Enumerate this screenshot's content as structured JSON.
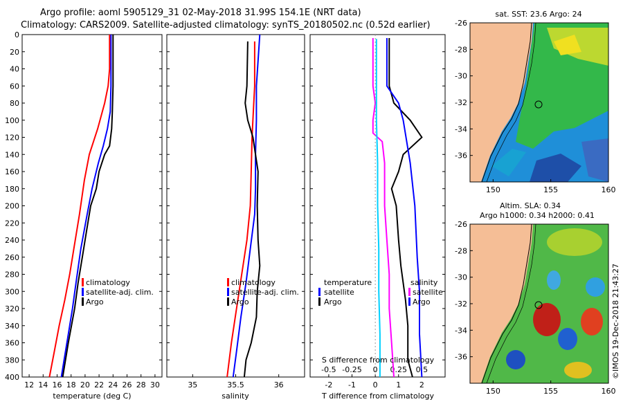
{
  "header": {
    "line1": "Argo profile: aoml 5905129_31 02-May-2018 31.99S 154.1E (NRT data)",
    "line2": "Climatology: CARS2009. Satellite-adjusted climatology: synTS_20180502.nc (0.52d earlier)"
  },
  "colors": {
    "climatology": "#ff0000",
    "satellite": "#0000ff",
    "argo": "#000000",
    "salinity_diff": "#ff00ff",
    "temp_diff": "#00d0ff",
    "land": "#f5be96"
  },
  "chart_data": [
    {
      "type": "line",
      "id": "temperature",
      "xlabel": "temperature (deg C)",
      "xlim": [
        11,
        31
      ],
      "ylim": [
        0,
        400
      ],
      "yticks": [
        "0",
        "20",
        "40",
        "60",
        "80",
        "100",
        "120",
        "140",
        "160",
        "180",
        "200",
        "220",
        "240",
        "260",
        "280",
        "300",
        "320",
        "340",
        "360",
        "380",
        "400"
      ],
      "xticks": [
        "12",
        "14",
        "16",
        "18",
        "20",
        "22",
        "24",
        "26",
        "28",
        "30"
      ],
      "legend": [
        "climatology",
        "satellite-adj. clim.",
        "Argo"
      ],
      "series": [
        {
          "name": "climatology",
          "color": "#ff0000",
          "points": [
            [
              23.5,
              0
            ],
            [
              23.5,
              40
            ],
            [
              23.3,
              60
            ],
            [
              22.8,
              80
            ],
            [
              21.8,
              110
            ],
            [
              20.6,
              140
            ],
            [
              19.9,
              170
            ],
            [
              19.2,
              210
            ],
            [
              18.4,
              250
            ],
            [
              17.8,
              280
            ],
            [
              17.1,
              310
            ],
            [
              16.3,
              340
            ],
            [
              15.6,
              370
            ],
            [
              14.9,
              400
            ]
          ]
        },
        {
          "name": "satellite-adj. clim.",
          "color": "#0000ff",
          "points": [
            [
              23.7,
              0
            ],
            [
              23.7,
              60
            ],
            [
              23.6,
              90
            ],
            [
              23.2,
              110
            ],
            [
              22.6,
              130
            ],
            [
              21.9,
              150
            ],
            [
              21.0,
              180
            ],
            [
              20.3,
              210
            ],
            [
              19.4,
              250
            ],
            [
              18.7,
              290
            ],
            [
              18.2,
              320
            ],
            [
              17.6,
              350
            ],
            [
              17.0,
              380
            ],
            [
              16.6,
              400
            ]
          ]
        },
        {
          "name": "Argo",
          "color": "#000000",
          "points": [
            [
              24.0,
              0
            ],
            [
              24.0,
              60
            ],
            [
              23.9,
              90
            ],
            [
              23.8,
              110
            ],
            [
              23.5,
              130
            ],
            [
              22.8,
              140
            ],
            [
              22.0,
              160
            ],
            [
              21.6,
              180
            ],
            [
              20.8,
              200
            ],
            [
              20.2,
              230
            ],
            [
              19.6,
              260
            ],
            [
              19.0,
              290
            ],
            [
              18.5,
              320
            ],
            [
              17.6,
              360
            ],
            [
              16.8,
              400
            ]
          ]
        }
      ]
    },
    {
      "type": "line",
      "id": "salinity",
      "xlabel": "salinity",
      "xlim": [
        34.7,
        36.3
      ],
      "ylim": [
        0,
        400
      ],
      "xticks": [
        "35",
        "35.5",
        "36"
      ],
      "legend": [
        "climatology",
        "satellite-adj. clim.",
        "Argo"
      ],
      "series": [
        {
          "name": "climatology",
          "color": "#ff0000",
          "points": [
            [
              35.72,
              8
            ],
            [
              35.72,
              60
            ],
            [
              35.71,
              80
            ],
            [
              35.69,
              120
            ],
            [
              35.68,
              160
            ],
            [
              35.67,
              200
            ],
            [
              35.63,
              240
            ],
            [
              35.57,
              280
            ],
            [
              35.51,
              320
            ],
            [
              35.45,
              360
            ],
            [
              35.4,
              400
            ]
          ]
        },
        {
          "name": "satellite-adj. clim.",
          "color": "#0000ff",
          "points": [
            [
              35.78,
              0
            ],
            [
              35.74,
              60
            ],
            [
              35.74,
              100
            ],
            [
              35.73,
              140
            ],
            [
              35.73,
              180
            ],
            [
              35.72,
              210
            ],
            [
              35.67,
              250
            ],
            [
              35.62,
              290
            ],
            [
              35.56,
              330
            ],
            [
              35.51,
              370
            ],
            [
              35.47,
              400
            ]
          ]
        },
        {
          "name": "Argo",
          "color": "#000000",
          "points": [
            [
              35.64,
              8
            ],
            [
              35.63,
              60
            ],
            [
              35.61,
              80
            ],
            [
              35.64,
              100
            ],
            [
              35.7,
              120
            ],
            [
              35.73,
              140
            ],
            [
              35.76,
              160
            ],
            [
              35.75,
              200
            ],
            [
              35.76,
              240
            ],
            [
              35.78,
              270
            ],
            [
              35.75,
              300
            ],
            [
              35.74,
              330
            ],
            [
              35.68,
              360
            ],
            [
              35.62,
              380
            ],
            [
              35.6,
              400
            ]
          ]
        }
      ]
    },
    {
      "type": "line",
      "id": "difference",
      "xlabel": "T difference from climatology",
      "xlabel2": "S difference from climatology",
      "xlim": [
        -2.8,
        3.0
      ],
      "ylim": [
        0,
        400
      ],
      "xticks": [
        "-2",
        "-1",
        "0",
        "1",
        "2"
      ],
      "xticks2": [
        "-0.5",
        "-0.25",
        "0",
        "0.25",
        "0.5"
      ],
      "legend_left_title": "temperature",
      "legend_right_title": "salinity",
      "legend_left": [
        "satellite",
        "Argo"
      ],
      "legend_right": [
        "satellite",
        "Argo"
      ],
      "series": [
        {
          "name": "salinity satellite",
          "color": "#ff00ff",
          "points": [
            [
              -0.1,
              4
            ],
            [
              -0.1,
              60
            ],
            [
              0.0,
              80
            ],
            [
              -0.1,
              100
            ],
            [
              -0.1,
              115
            ],
            [
              0.3,
              125
            ],
            [
              0.4,
              150
            ],
            [
              0.4,
              200
            ],
            [
              0.5,
              240
            ],
            [
              0.6,
              280
            ],
            [
              0.6,
              320
            ],
            [
              0.7,
              360
            ],
            [
              0.8,
              400
            ]
          ]
        },
        {
          "name": "temperature satellite",
          "color": "#00d0ff",
          "points": [
            [
              0.05,
              5
            ],
            [
              0.05,
              100
            ],
            [
              0.1,
              150
            ],
            [
              0.1,
              200
            ],
            [
              0.15,
              250
            ],
            [
              0.15,
              300
            ],
            [
              0.2,
              350
            ],
            [
              0.2,
              400
            ]
          ]
        },
        {
          "name": "temperature Argo",
          "color": "#000000",
          "points": [
            [
              0.6,
              4
            ],
            [
              0.6,
              60
            ],
            [
              0.8,
              80
            ],
            [
              1.5,
              100
            ],
            [
              2.0,
              120
            ],
            [
              1.2,
              140
            ],
            [
              1.0,
              160
            ],
            [
              0.7,
              180
            ],
            [
              0.9,
              200
            ],
            [
              1.0,
              240
            ],
            [
              1.1,
              270
            ],
            [
              1.3,
              310
            ],
            [
              1.4,
              340
            ],
            [
              1.4,
              380
            ],
            [
              1.6,
              400
            ]
          ]
        },
        {
          "name": "salinity Argo",
          "color": "#0000ff",
          "points": [
            [
              0.5,
              4
            ],
            [
              0.5,
              60
            ],
            [
              1.0,
              80
            ],
            [
              1.2,
              100
            ],
            [
              1.5,
              150
            ],
            [
              1.7,
              200
            ],
            [
              1.8,
              260
            ],
            [
              1.9,
              300
            ],
            [
              1.9,
              350
            ],
            [
              2.0,
              400
            ]
          ]
        }
      ]
    },
    {
      "type": "heatmap",
      "id": "sst_map",
      "title": "sat. SST: 23.6 Argo: 24",
      "xticks": [
        "150",
        "155",
        "160"
      ],
      "yticks": [
        "-26",
        "-28",
        "-30",
        "-32",
        "-34",
        "-36"
      ],
      "xlim": [
        148,
        160
      ],
      "ylim": [
        -38,
        -26
      ],
      "argo_position": [
        154.1,
        -31.99
      ]
    },
    {
      "type": "heatmap",
      "id": "sla_map",
      "title": "Altim. SLA: 0.34",
      "subtitle": "Argo h1000: 0.34 h2000: 0.41",
      "xticks": [
        "150",
        "155",
        "160"
      ],
      "yticks": [
        "-26",
        "-28",
        "-30",
        "-32",
        "-34",
        "-36"
      ],
      "xlim": [
        148,
        160
      ],
      "ylim": [
        -38,
        -26
      ],
      "argo_position": [
        154.1,
        -31.99
      ]
    }
  ],
  "watermark": "©IMOS 19-Dec-2018 21:43:27"
}
